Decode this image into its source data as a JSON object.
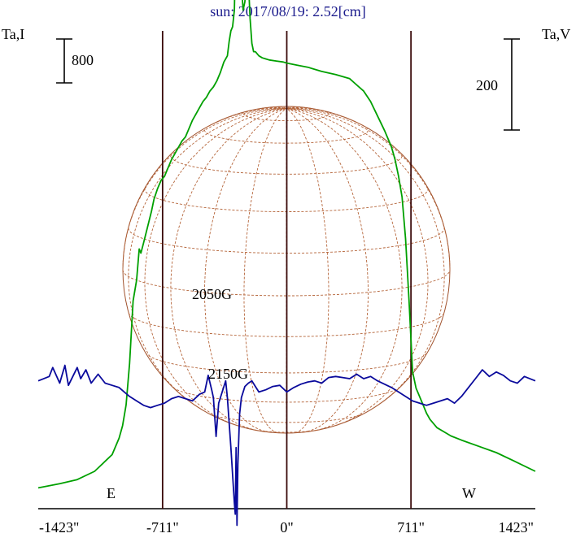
{
  "chart_data": {
    "type": "line",
    "title": "sun: 2017/08/19: 2.52[cm]",
    "left_axis_label": "Ta,I",
    "right_axis_label": "Ta,V",
    "left_scale_bar": "800",
    "right_scale_bar": "200",
    "x_ticks": [
      {
        "value": -1423,
        "label": "-1423\""
      },
      {
        "value": -711,
        "label": "-711\""
      },
      {
        "value": 0,
        "label": "0\""
      },
      {
        "value": 711,
        "label": "711\""
      },
      {
        "value": 1423,
        "label": "1423\""
      }
    ],
    "xlim": [
      -1423,
      1423
    ],
    "vertical_lines": [
      -711,
      0,
      711
    ],
    "limb_labels": {
      "east": "E",
      "west": "W"
    },
    "annotations": [
      {
        "label": "2050G",
        "x": -290
      },
      {
        "label": "2150G",
        "x": -280
      }
    ],
    "ylim_I": [
      -100,
      2200
    ],
    "ylim_V": [
      -115,
      315
    ],
    "series": [
      {
        "color": "#00a000",
        "x": [
          -1423,
          -1300,
          -1200,
          -1100,
          -1000,
          -960,
          -940,
          -920,
          -900,
          -880,
          -860,
          -845,
          -835,
          -820,
          -805,
          -790,
          -775,
          -760,
          -740,
          -720,
          -700,
          -680,
          -660,
          -640,
          -620,
          -600,
          -580,
          -560,
          -540,
          -520,
          -500,
          -480,
          -460,
          -440,
          -420,
          -400,
          -380,
          -360,
          -340,
          -330,
          -320,
          -310,
          -300,
          -290,
          -280,
          -270,
          -260,
          -250,
          -240,
          -230,
          -220,
          -210,
          -200,
          -190,
          -180,
          -160,
          -140,
          -120,
          -100,
          -60,
          -20,
          0,
          60,
          120,
          200,
          280,
          360,
          400,
          440,
          480,
          520,
          560,
          580,
          600,
          620,
          640,
          660,
          680,
          700,
          720,
          740,
          760,
          780,
          800,
          820,
          840,
          860,
          900,
          940,
          1000,
          1100,
          1200,
          1300,
          1423
        ],
        "y": [
          0,
          20,
          40,
          80,
          160,
          240,
          300,
          400,
          600,
          900,
          1000,
          1150,
          1130,
          1180,
          1230,
          1280,
          1330,
          1390,
          1440,
          1480,
          1500,
          1540,
          1580,
          1610,
          1640,
          1670,
          1690,
          1730,
          1770,
          1800,
          1830,
          1860,
          1880,
          1910,
          1930,
          1960,
          2000,
          2050,
          2080,
          2150,
          2200,
          2220,
          2300,
          2700,
          2930,
          2750,
          2430,
          2300,
          2340,
          2480,
          2440,
          2260,
          2140,
          2100,
          2100,
          2080,
          2070,
          2065,
          2060,
          2055,
          2050,
          2045,
          2035,
          2025,
          2005,
          1990,
          1970,
          1940,
          1910,
          1860,
          1790,
          1720,
          1680,
          1640,
          1580,
          1500,
          1400,
          1200,
          900,
          560,
          480,
          440,
          400,
          360,
          330,
          310,
          290,
          270,
          250,
          230,
          200,
          170,
          130,
          80
        ]
      },
      {
        "color": "#0a0a9c",
        "x": [
          -1423,
          -1360,
          -1340,
          -1300,
          -1270,
          -1250,
          -1200,
          -1180,
          -1150,
          -1120,
          -1080,
          -1040,
          -1000,
          -960,
          -930,
          -900,
          -860,
          -820,
          -780,
          -740,
          -700,
          -660,
          -620,
          -580,
          -540,
          -500,
          -470,
          -450,
          -430,
          -420,
          -405,
          -390,
          -370,
          -350,
          -340,
          -320,
          -300,
          -295,
          -290,
          -285,
          -280,
          -270,
          -260,
          -240,
          -220,
          -200,
          -180,
          -160,
          -120,
          -80,
          -40,
          0,
          40,
          80,
          120,
          160,
          200,
          240,
          280,
          320,
          360,
          400,
          440,
          480,
          520,
          560,
          600,
          640,
          680,
          720,
          760,
          800,
          840,
          880,
          920,
          960,
          1000,
          1040,
          1080,
          1120,
          1160,
          1200,
          1240,
          1280,
          1320,
          1360,
          1423
        ],
        "y": [
          0,
          4,
          12,
          -2,
          14,
          -4,
          12,
          2,
          10,
          -2,
          6,
          -2,
          -4,
          -6,
          -10,
          -14,
          -18,
          -22,
          -24,
          -22,
          -20,
          -16,
          -14,
          -16,
          -18,
          -12,
          -10,
          5,
          -8,
          -15,
          -50,
          -20,
          -10,
          0,
          -15,
          -60,
          -110,
          -120,
          -60,
          -130,
          -75,
          -30,
          -15,
          -5,
          -2,
          0,
          -5,
          -10,
          -8,
          -5,
          -4,
          -10,
          -6,
          -3,
          -1,
          0,
          -2,
          3,
          4,
          3,
          2,
          6,
          2,
          4,
          0,
          -3,
          -6,
          -10,
          -14,
          -18,
          -20,
          -22,
          -20,
          -18,
          -16,
          -20,
          -14,
          -6,
          2,
          10,
          4,
          8,
          5,
          0,
          -2,
          4,
          0
        ]
      }
    ]
  }
}
